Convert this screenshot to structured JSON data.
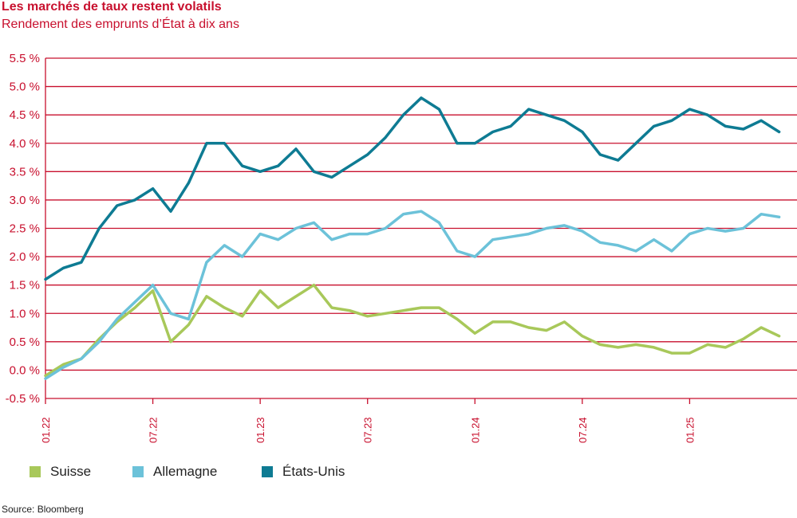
{
  "header": {
    "title": "Les marchés de taux restent volatils",
    "subtitle": "Rendement des emprunts d’État à dix ans"
  },
  "source": "Source: Bloomberg",
  "colors": {
    "grid": "#c8102e",
    "tick_label": "#c8102e",
    "title": "#c8102e"
  },
  "chart_data": {
    "type": "line",
    "title": "Les marchés de taux restent volatils",
    "subtitle": "Rendement des emprunts d’État à dix ans",
    "ylim": [
      -0.5,
      5.5
    ],
    "xlim": [
      "2022-01",
      "2025-07"
    ],
    "grid": true,
    "legend_position": "bottom",
    "y_ticks": [
      "5.5 %",
      "5.0 %",
      "4.5 %",
      "4.0 %",
      "3.5 %",
      "3.0 %",
      "2.5 %",
      "2.0 %",
      "1.5 %",
      "1.0 %",
      "0.5 %",
      "0.0 %",
      "-0.5 %"
    ],
    "y_tick_values": [
      5.5,
      5.0,
      4.5,
      4.0,
      3.5,
      3.0,
      2.5,
      2.0,
      1.5,
      1.0,
      0.5,
      0.0,
      -0.5
    ],
    "x_ticks": [
      "01.22",
      "07.22",
      "01.23",
      "07.23",
      "01.24",
      "07.24",
      "01.25"
    ],
    "x_tick_values": [
      "2022-01",
      "2022-07",
      "2023-01",
      "2023-07",
      "2024-01",
      "2024-07",
      "2025-01"
    ],
    "series": [
      {
        "name": "Suisse",
        "color": "#a8c85a",
        "points": [
          [
            "2022-01",
            -0.1
          ],
          [
            "2022-02",
            0.1
          ],
          [
            "2022-03",
            0.2
          ],
          [
            "2022-04",
            0.55
          ],
          [
            "2022-05",
            0.85
          ],
          [
            "2022-06",
            1.1
          ],
          [
            "2022-07",
            1.4
          ],
          [
            "2022-08",
            0.5
          ],
          [
            "2022-09",
            0.8
          ],
          [
            "2022-10",
            1.3
          ],
          [
            "2022-11",
            1.1
          ],
          [
            "2022-12",
            0.95
          ],
          [
            "2023-01",
            1.4
          ],
          [
            "2023-02",
            1.1
          ],
          [
            "2023-03",
            1.3
          ],
          [
            "2023-04",
            1.5
          ],
          [
            "2023-05",
            1.1
          ],
          [
            "2023-06",
            1.05
          ],
          [
            "2023-07",
            0.95
          ],
          [
            "2023-08",
            1.0
          ],
          [
            "2023-09",
            1.05
          ],
          [
            "2023-10",
            1.1
          ],
          [
            "2023-11",
            1.1
          ],
          [
            "2023-12",
            0.9
          ],
          [
            "2024-01",
            0.65
          ],
          [
            "2024-02",
            0.85
          ],
          [
            "2024-03",
            0.85
          ],
          [
            "2024-04",
            0.75
          ],
          [
            "2024-05",
            0.7
          ],
          [
            "2024-06",
            0.85
          ],
          [
            "2024-07",
            0.6
          ],
          [
            "2024-08",
            0.45
          ],
          [
            "2024-09",
            0.4
          ],
          [
            "2024-10",
            0.45
          ],
          [
            "2024-11",
            0.4
          ],
          [
            "2024-12",
            0.3
          ],
          [
            "2025-01",
            0.3
          ],
          [
            "2025-02",
            0.45
          ],
          [
            "2025-03",
            0.4
          ],
          [
            "2025-04",
            0.55
          ],
          [
            "2025-05",
            0.75
          ],
          [
            "2025-06",
            0.6
          ]
        ]
      },
      {
        "name": "Allemagne",
        "color": "#6cc2d9",
        "points": [
          [
            "2022-01",
            -0.15
          ],
          [
            "2022-02",
            0.05
          ],
          [
            "2022-03",
            0.2
          ],
          [
            "2022-04",
            0.5
          ],
          [
            "2022-05",
            0.9
          ],
          [
            "2022-06",
            1.2
          ],
          [
            "2022-07",
            1.5
          ],
          [
            "2022-08",
            1.0
          ],
          [
            "2022-09",
            0.9
          ],
          [
            "2022-10",
            1.9
          ],
          [
            "2022-11",
            2.2
          ],
          [
            "2022-12",
            2.0
          ],
          [
            "2023-01",
            2.4
          ],
          [
            "2023-02",
            2.3
          ],
          [
            "2023-03",
            2.5
          ],
          [
            "2023-04",
            2.6
          ],
          [
            "2023-05",
            2.3
          ],
          [
            "2023-06",
            2.4
          ],
          [
            "2023-07",
            2.4
          ],
          [
            "2023-08",
            2.5
          ],
          [
            "2023-09",
            2.75
          ],
          [
            "2023-10",
            2.8
          ],
          [
            "2023-11",
            2.6
          ],
          [
            "2023-12",
            2.1
          ],
          [
            "2024-01",
            2.0
          ],
          [
            "2024-02",
            2.3
          ],
          [
            "2024-03",
            2.35
          ],
          [
            "2024-04",
            2.4
          ],
          [
            "2024-05",
            2.5
          ],
          [
            "2024-06",
            2.55
          ],
          [
            "2024-07",
            2.45
          ],
          [
            "2024-08",
            2.25
          ],
          [
            "2024-09",
            2.2
          ],
          [
            "2024-10",
            2.1
          ],
          [
            "2024-11",
            2.3
          ],
          [
            "2024-12",
            2.1
          ],
          [
            "2025-01",
            2.4
          ],
          [
            "2025-02",
            2.5
          ],
          [
            "2025-03",
            2.45
          ],
          [
            "2025-04",
            2.5
          ],
          [
            "2025-05",
            2.75
          ],
          [
            "2025-06",
            2.7
          ]
        ]
      },
      {
        "name": "États-Unis",
        "color": "#0e7b93",
        "points": [
          [
            "2022-01",
            1.6
          ],
          [
            "2022-02",
            1.8
          ],
          [
            "2022-03",
            1.9
          ],
          [
            "2022-04",
            2.5
          ],
          [
            "2022-05",
            2.9
          ],
          [
            "2022-06",
            3.0
          ],
          [
            "2022-07",
            3.2
          ],
          [
            "2022-08",
            2.8
          ],
          [
            "2022-09",
            3.3
          ],
          [
            "2022-10",
            4.0
          ],
          [
            "2022-11",
            4.0
          ],
          [
            "2022-12",
            3.6
          ],
          [
            "2023-01",
            3.5
          ],
          [
            "2023-02",
            3.6
          ],
          [
            "2023-03",
            3.9
          ],
          [
            "2023-04",
            3.5
          ],
          [
            "2023-05",
            3.4
          ],
          [
            "2023-06",
            3.6
          ],
          [
            "2023-07",
            3.8
          ],
          [
            "2023-08",
            4.1
          ],
          [
            "2023-09",
            4.5
          ],
          [
            "2023-10",
            4.8
          ],
          [
            "2023-11",
            4.6
          ],
          [
            "2023-12",
            4.0
          ],
          [
            "2024-01",
            4.0
          ],
          [
            "2024-02",
            4.2
          ],
          [
            "2024-03",
            4.3
          ],
          [
            "2024-04",
            4.6
          ],
          [
            "2024-05",
            4.5
          ],
          [
            "2024-06",
            4.4
          ],
          [
            "2024-07",
            4.2
          ],
          [
            "2024-08",
            3.8
          ],
          [
            "2024-09",
            3.7
          ],
          [
            "2024-10",
            4.0
          ],
          [
            "2024-11",
            4.3
          ],
          [
            "2024-12",
            4.4
          ],
          [
            "2025-01",
            4.6
          ],
          [
            "2025-02",
            4.5
          ],
          [
            "2025-03",
            4.3
          ],
          [
            "2025-04",
            4.25
          ],
          [
            "2025-05",
            4.4
          ],
          [
            "2025-06",
            4.2
          ]
        ]
      }
    ]
  }
}
